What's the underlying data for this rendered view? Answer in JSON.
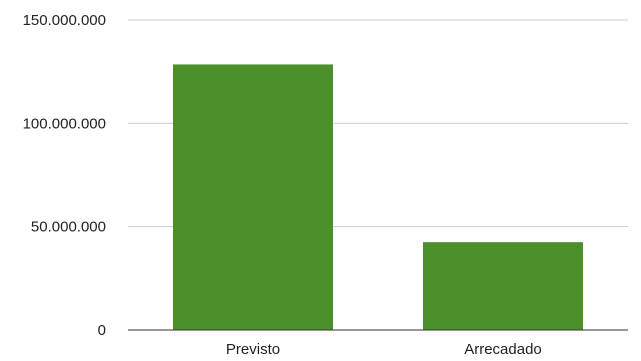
{
  "chart_data": {
    "type": "bar",
    "categories": [
      "Previsto",
      "Arrecadado"
    ],
    "values": [
      128500000,
      42500000
    ],
    "ylim": [
      0,
      150000000
    ],
    "yticks": [
      0,
      50000000,
      100000000,
      150000000
    ],
    "ytick_labels": [
      "0",
      "50.000.000",
      "100.000.000",
      "150.000.000"
    ],
    "title": "",
    "xlabel": "",
    "ylabel": "",
    "grid": true,
    "legend": "none",
    "colors": {
      "bar": "#4a8f29",
      "grid": "#cccccc",
      "axis": "#333333",
      "text": "#222222"
    }
  }
}
